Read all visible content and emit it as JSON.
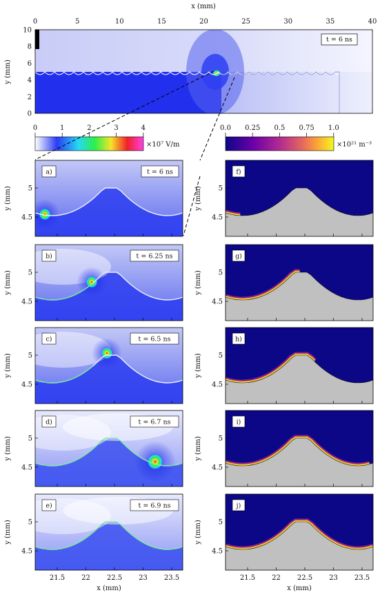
{
  "top_panel": {
    "x_axis_label": "x (mm)",
    "y_axis_label": "y (mm)",
    "x_ticks": [
      "0",
      "5",
      "10",
      "15",
      "20",
      "25",
      "30",
      "35",
      "40"
    ],
    "y_ticks": [
      "10",
      "8",
      "6",
      "4",
      "2",
      "0"
    ],
    "time_label": "t = 6 ns"
  },
  "colorbar_field": {
    "ticks": [
      "0",
      "1",
      "2",
      "3",
      "4"
    ],
    "unit": "×10⁷ V/m",
    "colors": [
      "#ffffff",
      "#2a3cf4",
      "#25d9f5",
      "#2cf04a",
      "#f5e528",
      "#f0212a",
      "#ff40e6"
    ]
  },
  "colorbar_density": {
    "ticks": [
      "0.0",
      "0.25",
      "0.5",
      "0.75",
      "1.0"
    ],
    "unit": "×10²¹ m⁻³",
    "colors": [
      "#0c0787",
      "#6a00a8",
      "#b12a90",
      "#e16462",
      "#fca636",
      "#f0f921"
    ]
  },
  "left_panels": [
    {
      "label": "a)",
      "time": "t = 6 ns"
    },
    {
      "label": "b)",
      "time": "t = 6.25 ns"
    },
    {
      "label": "c)",
      "time": "t = 6.5 ns"
    },
    {
      "label": "d)",
      "time": "t = 6.7 ns"
    },
    {
      "label": "e)",
      "time": "t = 6.9 ns"
    }
  ],
  "right_panels": [
    {
      "label": "f)"
    },
    {
      "label": "g)"
    },
    {
      "label": "h)"
    },
    {
      "label": "i)"
    },
    {
      "label": "j)"
    }
  ],
  "panel_y_ticks": [
    "5",
    "4.5"
  ],
  "panel_y_label": "y (mm)",
  "bottom_x_ticks": [
    "21.5",
    "22",
    "22.5",
    "23",
    "23.5"
  ],
  "bottom_x_label": "x (mm)"
}
